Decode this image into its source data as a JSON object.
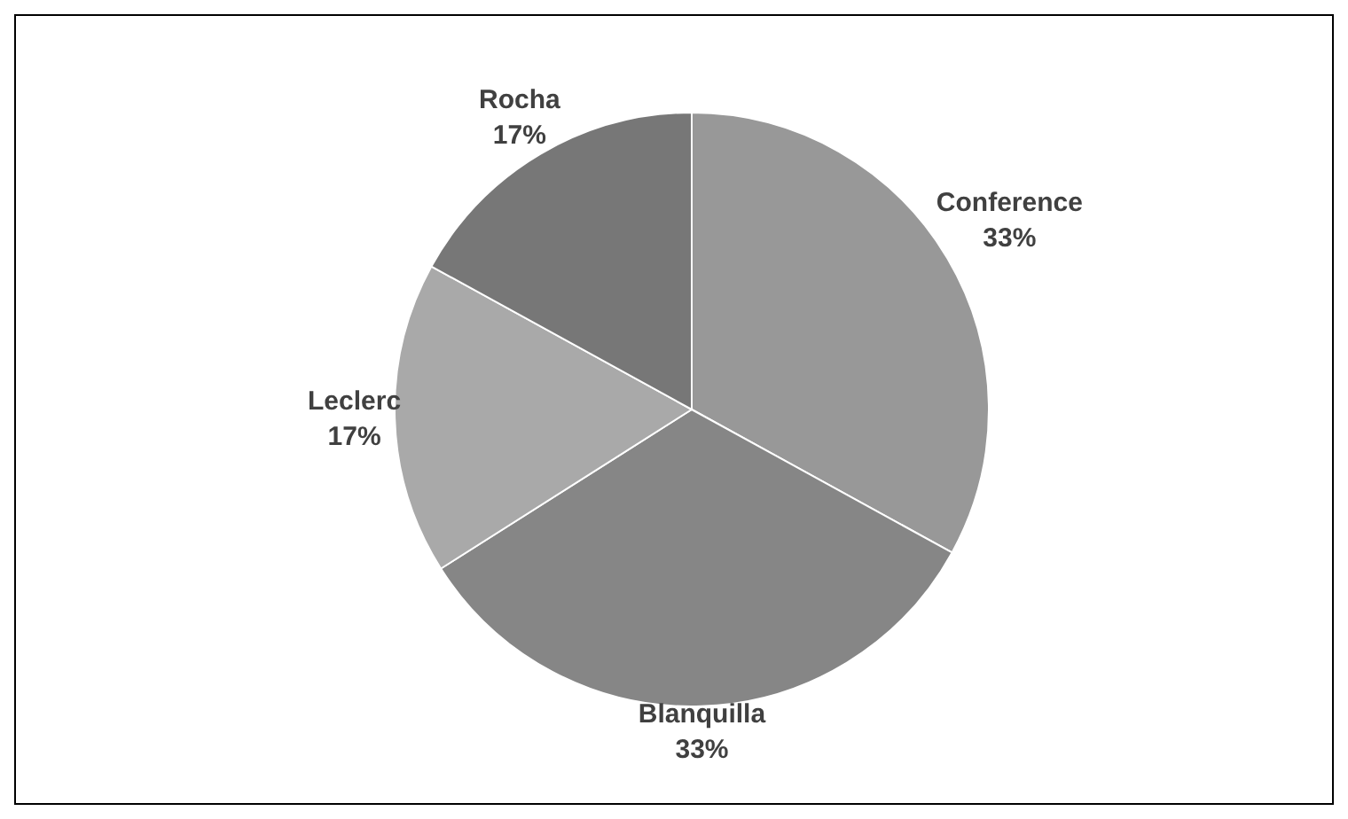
{
  "chart_data": {
    "type": "pie",
    "categories": [
      "Conference",
      "Blanquilla",
      "Leclerc",
      "Rocha"
    ],
    "values": [
      33,
      33,
      17,
      17
    ],
    "colors": [
      "#989898",
      "#868686",
      "#a9a9a9",
      "#777777"
    ],
    "value_labels": [
      "33%",
      "33%",
      "17%",
      "17%"
    ],
    "legend": false
  }
}
